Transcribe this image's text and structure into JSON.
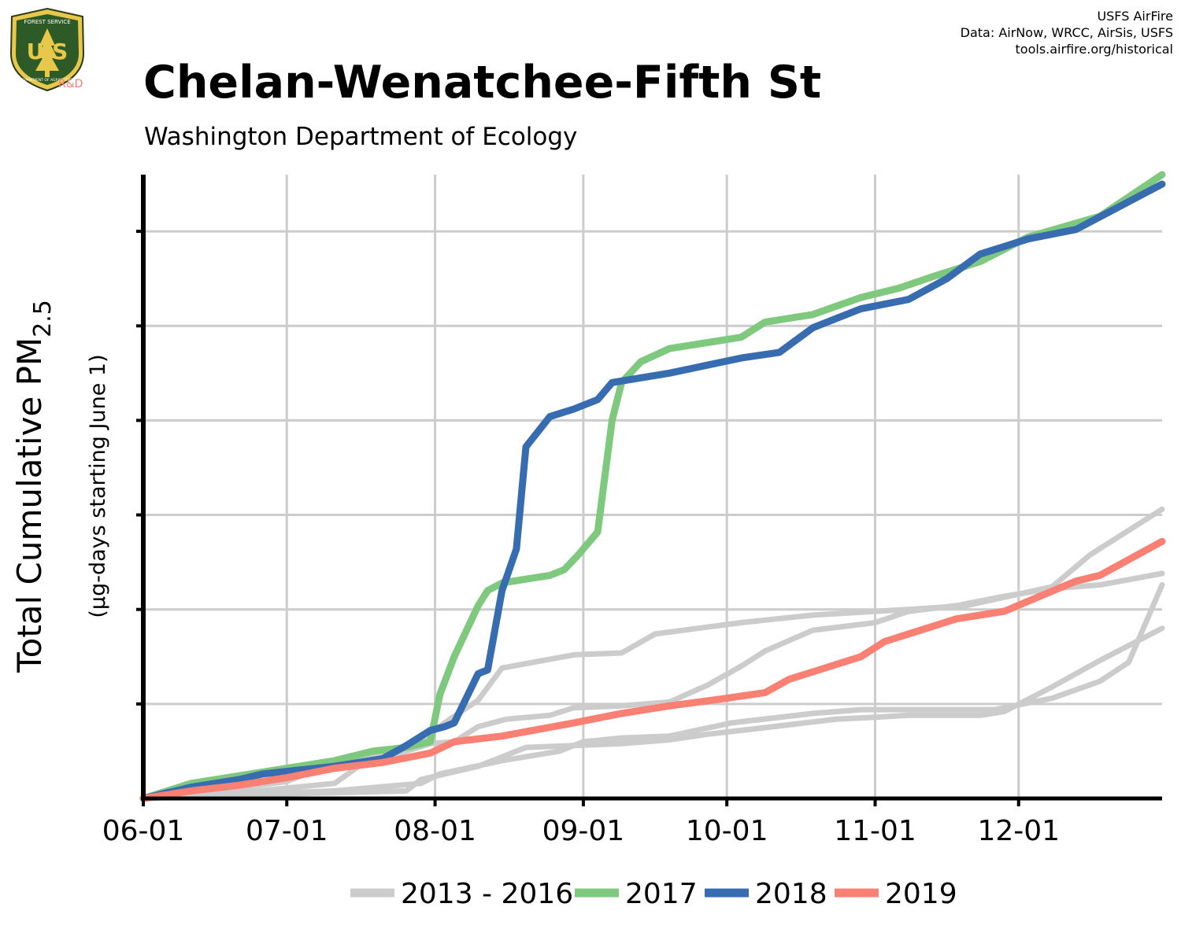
{
  "credits": {
    "line1": "USFS AirFire",
    "line2": "Data: AirNow, WRCC, AirSis, USFS",
    "line3": "tools.airfire.org/historical"
  },
  "logo": {
    "top_text": "FOREST SERVICE",
    "letters": "U S",
    "bottom_text": "DEPARTMENT OF AGRICULTURE",
    "tag": "R&D"
  },
  "colors": {
    "history": "#cccccc",
    "y2017": "#7fc97f",
    "y2018": "#386cb0",
    "y2019": "#f98072",
    "grid": "#cccccc"
  },
  "chart_data": {
    "type": "line",
    "title": "Chelan-Wenatchee-Fifth St",
    "subtitle": "Washington Department of Ecology",
    "ylabel_main": "Total Cumulative PM",
    "ylabel_sub": "2.5",
    "ylabel_units": "(µg-days starting June 1)",
    "x_ticks": [
      "06-01",
      "07-01",
      "08-01",
      "09-01",
      "10-01",
      "11-01",
      "12-01"
    ],
    "x_tick_days": [
      0,
      30,
      61,
      92,
      122,
      153,
      183
    ],
    "xlim": [
      0,
      213
    ],
    "ylim": [
      0,
      3300
    ],
    "y_ticks": [
      0,
      500,
      1000,
      1500,
      2000,
      2500,
      3000
    ],
    "y_tick_labels_shown": false,
    "grid": true,
    "legend": {
      "position": "bottom",
      "items": [
        {
          "label": "2013 - 2016",
          "color": "#cccccc"
        },
        {
          "label": "2017",
          "color": "#7fc97f"
        },
        {
          "label": "2018",
          "color": "#386cb0"
        },
        {
          "label": "2019",
          "color": "#f98072"
        }
      ]
    },
    "series": [
      {
        "name": "2013 - 2016",
        "group": "history",
        "color": "#cccccc",
        "points": [
          [
            0,
            0
          ],
          [
            15,
            40
          ],
          [
            30,
            90
          ],
          [
            35,
            140
          ],
          [
            38,
            190
          ],
          [
            47,
            220
          ],
          [
            58,
            300
          ],
          [
            63,
            400
          ],
          [
            70,
            520
          ],
          [
            75,
            690
          ],
          [
            90,
            760
          ],
          [
            100,
            770
          ],
          [
            107,
            870
          ],
          [
            125,
            930
          ],
          [
            140,
            970
          ],
          [
            160,
            1000
          ],
          [
            172,
            1020
          ],
          [
            190,
            1120
          ],
          [
            198,
            1290
          ],
          [
            213,
            1530
          ]
        ]
      },
      {
        "name": "2013 - 2016",
        "group": "history",
        "color": "#cccccc",
        "points": [
          [
            0,
            0
          ],
          [
            20,
            20
          ],
          [
            40,
            30
          ],
          [
            55,
            40
          ],
          [
            58,
            100
          ],
          [
            70,
            170
          ],
          [
            80,
            270
          ],
          [
            90,
            280
          ],
          [
            100,
            290
          ],
          [
            110,
            310
          ],
          [
            118,
            340
          ],
          [
            125,
            360
          ],
          [
            145,
            420
          ],
          [
            153,
            430
          ],
          [
            160,
            440
          ],
          [
            175,
            440
          ],
          [
            180,
            460
          ],
          [
            190,
            590
          ],
          [
            200,
            730
          ],
          [
            213,
            900
          ]
        ]
      },
      {
        "name": "2013 - 2016",
        "group": "history",
        "color": "#cccccc",
        "points": [
          [
            0,
            0
          ],
          [
            20,
            30
          ],
          [
            40,
            80
          ],
          [
            45,
            170
          ],
          [
            50,
            210
          ],
          [
            55,
            250
          ],
          [
            60,
            290
          ],
          [
            65,
            300
          ],
          [
            70,
            380
          ],
          [
            76,
            420
          ],
          [
            85,
            440
          ],
          [
            90,
            480
          ],
          [
            100,
            490
          ],
          [
            110,
            510
          ],
          [
            118,
            600
          ],
          [
            125,
            700
          ],
          [
            130,
            780
          ],
          [
            140,
            890
          ],
          [
            153,
            930
          ],
          [
            160,
            990
          ],
          [
            170,
            1020
          ],
          [
            180,
            1070
          ],
          [
            190,
            1110
          ],
          [
            200,
            1130
          ],
          [
            213,
            1190
          ]
        ]
      },
      {
        "name": "2013 - 2016",
        "group": "history",
        "color": "#cccccc",
        "points": [
          [
            0,
            0
          ],
          [
            20,
            20
          ],
          [
            40,
            40
          ],
          [
            58,
            80
          ],
          [
            62,
            130
          ],
          [
            75,
            200
          ],
          [
            87,
            250
          ],
          [
            92,
            300
          ],
          [
            100,
            320
          ],
          [
            110,
            330
          ],
          [
            123,
            400
          ],
          [
            140,
            450
          ],
          [
            150,
            470
          ],
          [
            162,
            470
          ],
          [
            175,
            470
          ],
          [
            178,
            470
          ],
          [
            190,
            530
          ],
          [
            200,
            620
          ],
          [
            206,
            720
          ],
          [
            213,
            1130
          ]
        ]
      },
      {
        "name": "2017",
        "group": "y2017",
        "color": "#7fc97f",
        "points": [
          [
            0,
            0
          ],
          [
            10,
            80
          ],
          [
            20,
            120
          ],
          [
            30,
            160
          ],
          [
            40,
            200
          ],
          [
            48,
            250
          ],
          [
            55,
            270
          ],
          [
            60,
            300
          ],
          [
            62,
            550
          ],
          [
            65,
            750
          ],
          [
            70,
            1020
          ],
          [
            72,
            1100
          ],
          [
            75,
            1140
          ],
          [
            80,
            1160
          ],
          [
            85,
            1180
          ],
          [
            88,
            1210
          ],
          [
            91,
            1290
          ],
          [
            95,
            1410
          ],
          [
            98,
            2000
          ],
          [
            100,
            2200
          ],
          [
            104,
            2310
          ],
          [
            110,
            2380
          ],
          [
            120,
            2420
          ],
          [
            125,
            2440
          ],
          [
            130,
            2520
          ],
          [
            140,
            2560
          ],
          [
            150,
            2650
          ],
          [
            158,
            2700
          ],
          [
            165,
            2760
          ],
          [
            175,
            2840
          ],
          [
            185,
            2970
          ],
          [
            200,
            3080
          ],
          [
            213,
            3300
          ]
        ]
      },
      {
        "name": "2018",
        "group": "y2018",
        "color": "#386cb0",
        "points": [
          [
            0,
            0
          ],
          [
            10,
            60
          ],
          [
            20,
            100
          ],
          [
            25,
            130
          ],
          [
            40,
            170
          ],
          [
            50,
            210
          ],
          [
            55,
            280
          ],
          [
            60,
            360
          ],
          [
            63,
            380
          ],
          [
            65,
            400
          ],
          [
            70,
            660
          ],
          [
            72,
            680
          ],
          [
            75,
            1100
          ],
          [
            78,
            1320
          ],
          [
            80,
            1860
          ],
          [
            85,
            2020
          ],
          [
            90,
            2060
          ],
          [
            95,
            2110
          ],
          [
            98,
            2200
          ],
          [
            110,
            2250
          ],
          [
            125,
            2330
          ],
          [
            133,
            2360
          ],
          [
            140,
            2490
          ],
          [
            150,
            2590
          ],
          [
            160,
            2640
          ],
          [
            168,
            2750
          ],
          [
            175,
            2880
          ],
          [
            185,
            2960
          ],
          [
            195,
            3010
          ],
          [
            213,
            3250
          ]
        ]
      },
      {
        "name": "2019",
        "group": "y2019",
        "color": "#f98072",
        "points": [
          [
            0,
            0
          ],
          [
            10,
            40
          ],
          [
            20,
            70
          ],
          [
            30,
            110
          ],
          [
            40,
            160
          ],
          [
            50,
            190
          ],
          [
            60,
            240
          ],
          [
            65,
            300
          ],
          [
            75,
            330
          ],
          [
            90,
            400
          ],
          [
            100,
            450
          ],
          [
            110,
            490
          ],
          [
            122,
            530
          ],
          [
            130,
            560
          ],
          [
            135,
            630
          ],
          [
            140,
            670
          ],
          [
            150,
            750
          ],
          [
            155,
            830
          ],
          [
            170,
            950
          ],
          [
            180,
            990
          ],
          [
            195,
            1150
          ],
          [
            200,
            1180
          ],
          [
            213,
            1360
          ]
        ]
      }
    ]
  }
}
